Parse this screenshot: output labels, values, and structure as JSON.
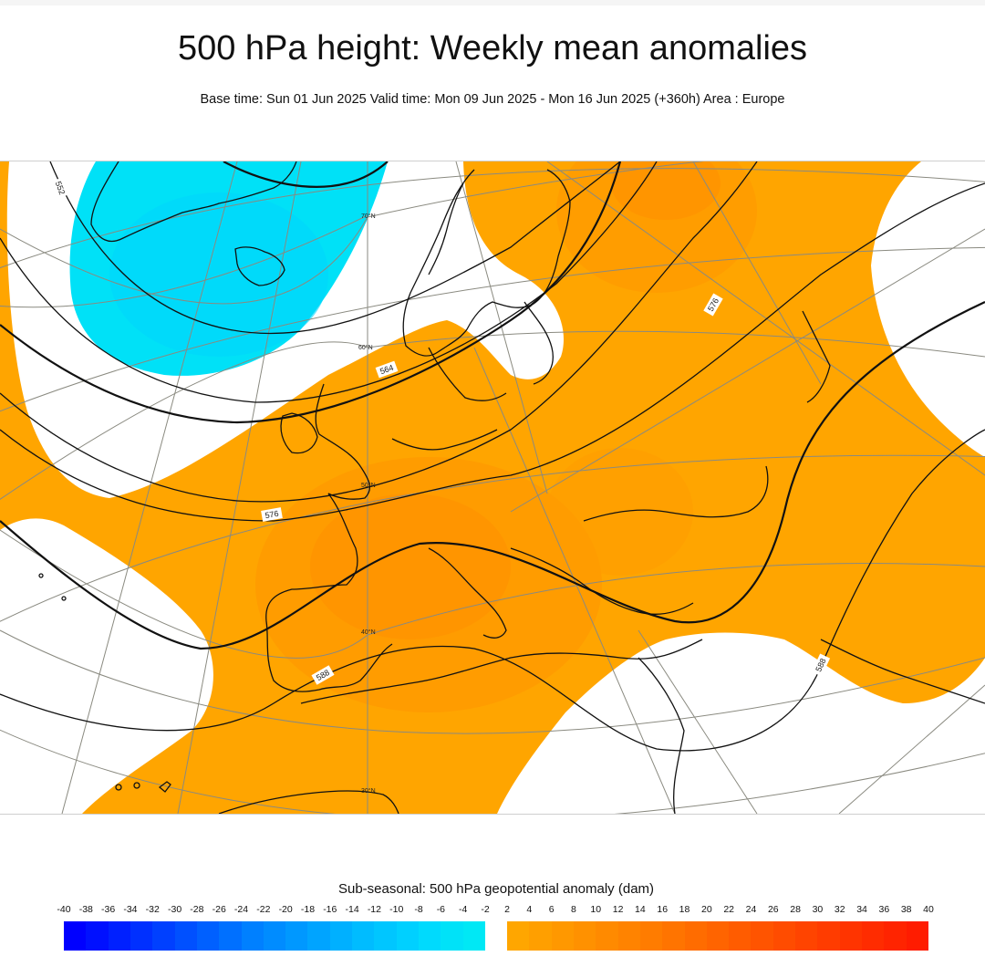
{
  "header": {
    "title": "500 hPa height: Weekly mean anomalies",
    "subtitle": "Base time: Sun 01 Jun 2025 Valid time: Mon 09 Jun 2025 - Mon 16 Jun 2025 (+360h) Area : Europe"
  },
  "map": {
    "area": "Europe",
    "contour_labels": [
      "552",
      "564",
      "576",
      "576",
      "588",
      "588"
    ],
    "latitude_labels": [
      "70°N",
      "60°N",
      "50°N",
      "40°N",
      "30°N"
    ],
    "colors": {
      "positive_fill": "#ffa500",
      "positive_strong": "#ff8c00",
      "negative_fill": "#00e0f5",
      "negative_strong": "#00cfff",
      "contour": "#111111",
      "graticule": "#8a8a80",
      "coast": "#111111"
    }
  },
  "legend": {
    "title": "Sub-seasonal: 500 hPa geopotential anomaly (dam)",
    "negative_ticks": [
      "-40",
      "-38",
      "-36",
      "-34",
      "-32",
      "-30",
      "-28",
      "-26",
      "-24",
      "-22",
      "-20",
      "-18",
      "-16",
      "-14",
      "-12",
      "-10",
      "-8",
      "-6",
      "-4",
      "-2"
    ],
    "positive_ticks": [
      "2",
      "4",
      "6",
      "8",
      "10",
      "12",
      "14",
      "16",
      "18",
      "20",
      "22",
      "24",
      "26",
      "28",
      "30",
      "32",
      "34",
      "36",
      "38",
      "40"
    ],
    "negative_colors": [
      "#0000ff",
      "#0010ff",
      "#0020ff",
      "#0030ff",
      "#0040ff",
      "#0050ff",
      "#0060ff",
      "#0070ff",
      "#0080ff",
      "#008cff",
      "#0098ff",
      "#00a4ff",
      "#00b0ff",
      "#00bcff",
      "#00c6ff",
      "#00d0ff",
      "#00dafd",
      "#00e2f8",
      "#00e8f5"
    ],
    "positive_colors": [
      "#ffa600",
      "#ff9f00",
      "#ff9800",
      "#ff9100",
      "#ff8a00",
      "#ff8300",
      "#ff7c00",
      "#ff7400",
      "#ff6c00",
      "#ff6400",
      "#ff5c00",
      "#ff5400",
      "#ff4c00",
      "#ff4400",
      "#ff3c00",
      "#ff3400",
      "#ff2c00",
      "#ff2400",
      "#ff1c00"
    ]
  }
}
